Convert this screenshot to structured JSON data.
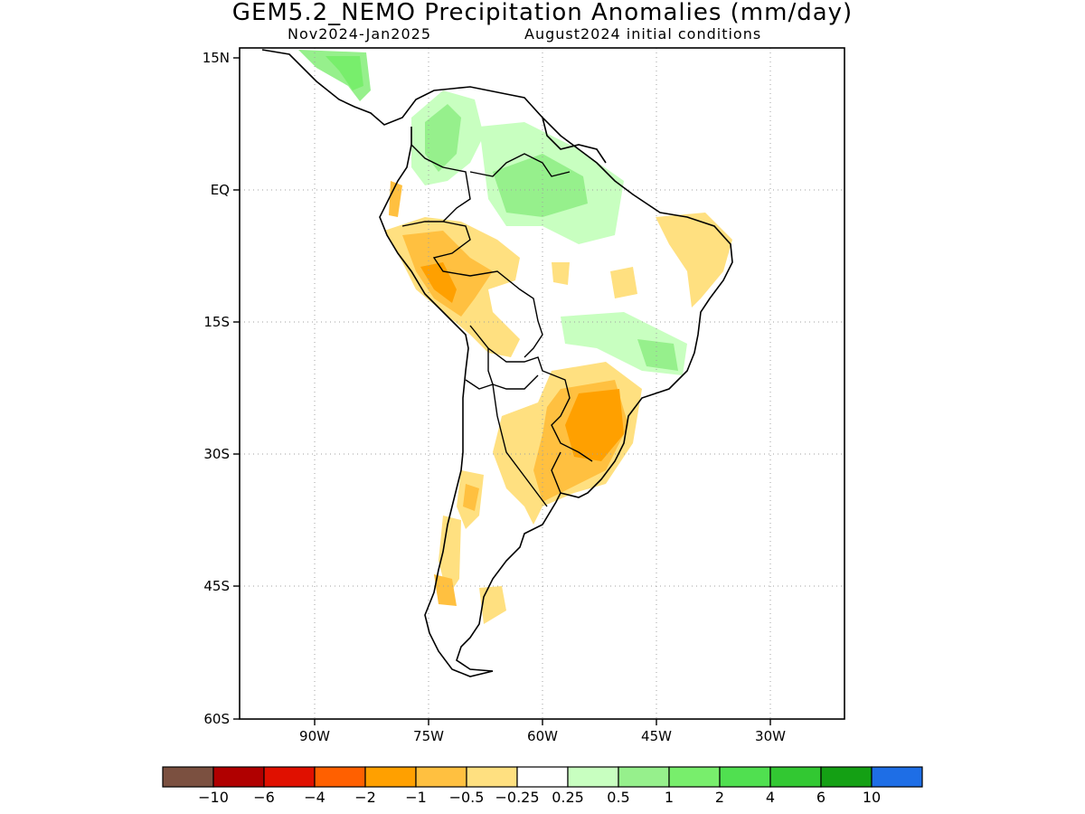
{
  "title": "GEM5.2_NEMO Precipitation Anomalies (mm/day)",
  "subtitle_left": "Nov2024-Jan2025",
  "subtitle_right": "August2024 initial conditions",
  "map": {
    "lon_range": [
      -100,
      -20
    ],
    "lat_range": [
      -60,
      15
    ],
    "lat_ticks": [
      "15N",
      "EQ",
      "15S",
      "30S",
      "45S",
      "60S"
    ],
    "lon_ticks": [
      "90W",
      "75W",
      "60W",
      "45W",
      "30W"
    ],
    "grid": "dotted"
  },
  "colorbar": {
    "colors": [
      "#7b5040",
      "#b00000",
      "#e01000",
      "#ff6000",
      "#ffa000",
      "#ffc040",
      "#ffe080",
      "#ffffff",
      "#c8ffc0",
      "#96f08c",
      "#78ee6c",
      "#50e050",
      "#32c832",
      "#14a014",
      "#1e6ee6"
    ],
    "labels": [
      "-10",
      "-6",
      "-4",
      "-2",
      "-1",
      "-0.5",
      "-0.25",
      "0.25",
      "0.5",
      "1",
      "2",
      "4",
      "6",
      "10"
    ]
  },
  "anomaly_regions": [
    {
      "name": "central-america-wet",
      "category": "0.5"
    },
    {
      "name": "colombia-wet",
      "category": "0.5"
    },
    {
      "name": "venezuela-amazon-wet",
      "category": "0.5"
    },
    {
      "name": "peru-bolivia-dry",
      "category": "-1"
    },
    {
      "name": "northeast-brazil-dry",
      "category": "-0.5"
    },
    {
      "name": "central-brazil-wet",
      "category": "0.5"
    },
    {
      "name": "southeast-brazil-dry",
      "category": "-1"
    },
    {
      "name": "argentina-dry",
      "category": "-0.5"
    },
    {
      "name": "patagonia-dry",
      "category": "-0.5"
    }
  ]
}
